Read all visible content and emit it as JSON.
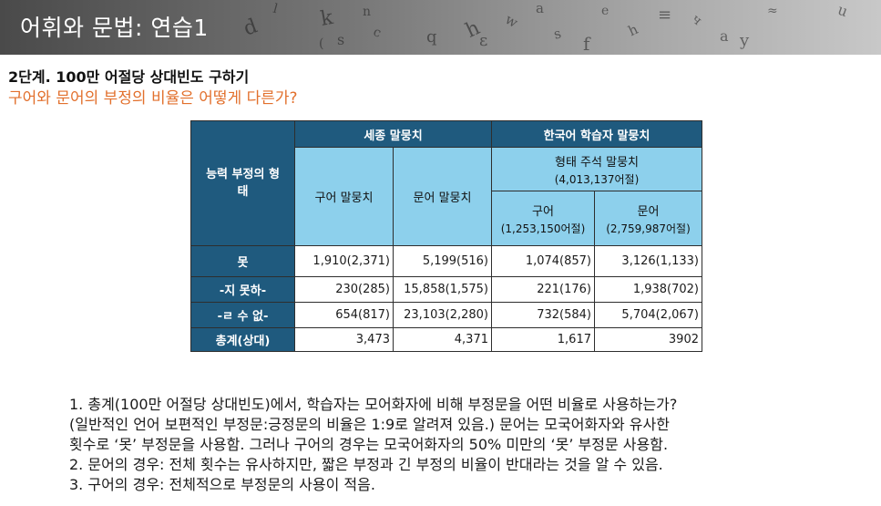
{
  "header": {
    "title": "어휘와 문법: 연습1"
  },
  "section": {
    "step_title": "2단계. 100만 어절당 상대빈도 구하기",
    "question": "구어와 문어의 부정의 비율은 어떻게 다른가?"
  },
  "table": {
    "row_header_title": "능력 부정의 형태",
    "group_sejong": "세종 말뭉치",
    "group_learner": "한국어 학습자 말뭉치",
    "learner_sub": "형태 주석 말뭉치",
    "learner_sub_count": "(4,013,137어절)",
    "col_sejong_spoken": "구어 말뭉치",
    "col_sejong_written": "문어 말뭉치",
    "col_learner_spoken": "구어",
    "col_learner_spoken_count": "(1,253,150어절)",
    "col_learner_written": "문어",
    "col_learner_written_count": "(2,759,987어절)",
    "rows": [
      {
        "label": "못",
        "v1": "1,910(2,371)",
        "v2": "5,199(516)",
        "v3": "1,074(857)",
        "v4": "3,126(1,133)"
      },
      {
        "label": "-지 못하-",
        "v1": "230(285)",
        "v2": "15,858(1,575)",
        "v3": "221(176)",
        "v4": "1,938(702)"
      },
      {
        "label": "-ㄹ 수 없-",
        "v1": "654(817)",
        "v2": "23,103(2,280)",
        "v3": "732(584)",
        "v4": "5,704(2,067)"
      },
      {
        "label": "총계(상대)",
        "v1": "3,473",
        "v2": "4,371",
        "v3": "1,617",
        "v4": "3902"
      }
    ]
  },
  "notes": {
    "line1": "1.  총계(100만 어절당 상대빈도)에서, 학습자는 모어화자에 비해 부정문을 어떤 비율로 사용하는가?",
    "line2": "(일반적인 언어 보편적인 부정문:긍정문의 비율은 1:9로 알려져 있음.) 문어는 모국어화자와 유사한",
    "line3": "횟수로 ‘못’ 부정문을 사용함. 그러나 구어의 경우는 모국어화자의 50% 미만의 ‘못’ 부정문 사용함.",
    "line4": "2. 문어의 경우: 전체 횟수는 유사하지만, 짧은 부정과 긴 부정의 비율이 반대라는 것을 알 수 있음.",
    "line5": "3. 구어의 경우: 전체적으로 부정문의 사용이 적음."
  }
}
